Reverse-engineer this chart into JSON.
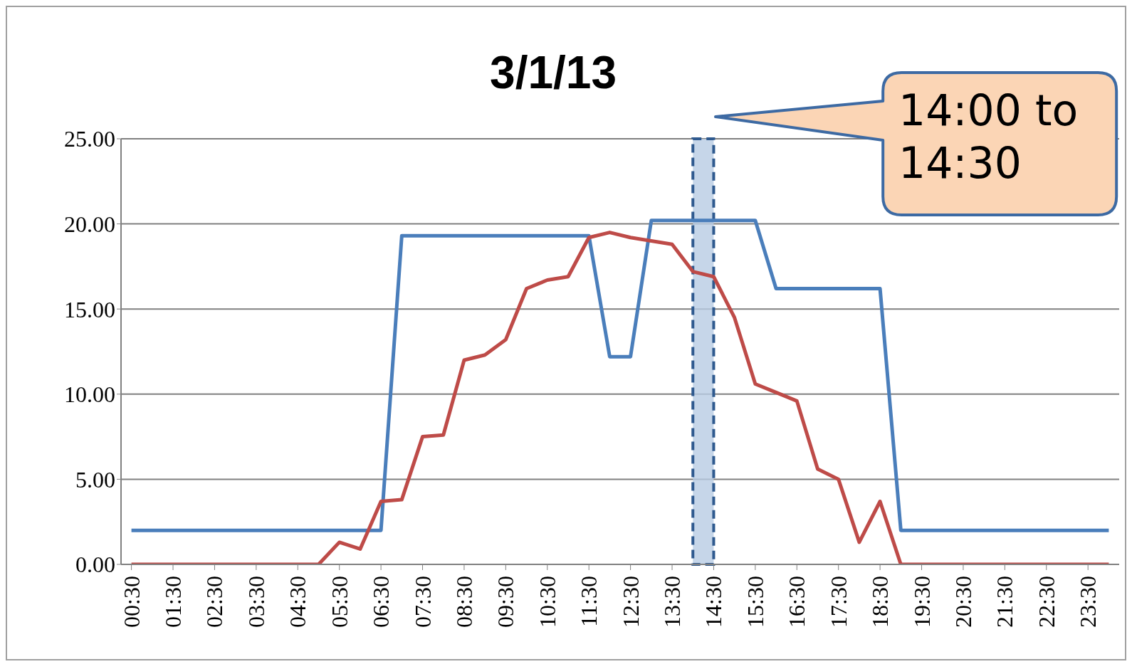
{
  "chart_data": {
    "type": "line",
    "title": "3/1/13",
    "x": [
      0.5,
      1,
      1.5,
      2,
      2.5,
      3,
      3.5,
      4,
      4.5,
      5,
      5.5,
      6,
      6.5,
      7,
      7.5,
      8,
      8.5,
      9,
      9.5,
      10,
      10.5,
      11,
      11.5,
      12,
      12.5,
      13,
      13.5,
      14,
      14.5,
      15,
      15.5,
      16,
      16.5,
      17,
      17.5,
      18,
      18.5,
      19,
      19.5,
      20,
      20.5,
      21,
      21.5,
      22,
      22.5,
      23,
      23.5,
      24
    ],
    "series": [
      {
        "color": "#4a7ebb",
        "values": [
          2.0,
          2.0,
          2.0,
          2.0,
          2.0,
          2.0,
          2.0,
          2.0,
          2.0,
          2.0,
          2.0,
          2.0,
          2.0,
          19.3,
          19.3,
          19.3,
          19.3,
          19.3,
          19.3,
          19.3,
          19.3,
          19.3,
          19.3,
          12.2,
          12.2,
          20.2,
          20.2,
          20.2,
          20.2,
          20.2,
          20.2,
          16.2,
          16.2,
          16.2,
          16.2,
          16.2,
          16.2,
          2.0,
          2.0,
          2.0,
          2.0,
          2.0,
          2.0,
          2.0,
          2.0,
          2.0,
          2.0,
          2.0
        ]
      },
      {
        "color": "#be4b48",
        "values": [
          0,
          0,
          0,
          0,
          0,
          0,
          0,
          0,
          0,
          0,
          1.3,
          0.9,
          3.7,
          3.8,
          7.5,
          7.6,
          12.0,
          12.3,
          13.2,
          16.2,
          16.7,
          16.9,
          19.2,
          19.5,
          19.2,
          19.0,
          18.8,
          17.2,
          16.9,
          14.5,
          10.6,
          10.1,
          9.6,
          5.6,
          5.0,
          1.3,
          3.7,
          0,
          0,
          0,
          0,
          0,
          0,
          0,
          0,
          0,
          0,
          0
        ]
      }
    ],
    "xlim": [
      0.25,
      24.25
    ],
    "xticks": [
      {
        "value": 0.5,
        "label": "00:30"
      },
      {
        "value": 1.5,
        "label": "01:30"
      },
      {
        "value": 2.5,
        "label": "02:30"
      },
      {
        "value": 3.5,
        "label": "03:30"
      },
      {
        "value": 4.5,
        "label": "04:30"
      },
      {
        "value": 5.5,
        "label": "05:30"
      },
      {
        "value": 6.5,
        "label": "06:30"
      },
      {
        "value": 7.5,
        "label": "07:30"
      },
      {
        "value": 8.5,
        "label": "08:30"
      },
      {
        "value": 9.5,
        "label": "09:30"
      },
      {
        "value": 10.5,
        "label": "10:30"
      },
      {
        "value": 11.5,
        "label": "11:30"
      },
      {
        "value": 12.5,
        "label": "12:30"
      },
      {
        "value": 13.5,
        "label": "13:30"
      },
      {
        "value": 14.5,
        "label": "14:30"
      },
      {
        "value": 15.5,
        "label": "15:30"
      },
      {
        "value": 16.5,
        "label": "16:30"
      },
      {
        "value": 17.5,
        "label": "17:30"
      },
      {
        "value": 18.5,
        "label": "18:30"
      },
      {
        "value": 19.5,
        "label": "19:30"
      },
      {
        "value": 20.5,
        "label": "20:30"
      },
      {
        "value": 21.5,
        "label": "21:30"
      },
      {
        "value": 22.5,
        "label": "22:30"
      },
      {
        "value": 23.5,
        "label": "23:30"
      }
    ],
    "ylim": [
      0,
      25
    ],
    "yticks": [
      {
        "value": 0,
        "label": "0.00"
      },
      {
        "value": 5,
        "label": "5.00"
      },
      {
        "value": 10,
        "label": "10.00"
      },
      {
        "value": 15,
        "label": "15.00"
      },
      {
        "value": 20,
        "label": "20.00"
      },
      {
        "value": 25,
        "label": "25.00"
      }
    ],
    "bands": [
      {
        "axis": "x",
        "from": 14,
        "to": 14.5,
        "color": "#b8cce4"
      }
    ],
    "annotations": [
      "14:00 to 14:30"
    ],
    "grid": "y",
    "marker": "none",
    "line_style": "solid"
  }
}
